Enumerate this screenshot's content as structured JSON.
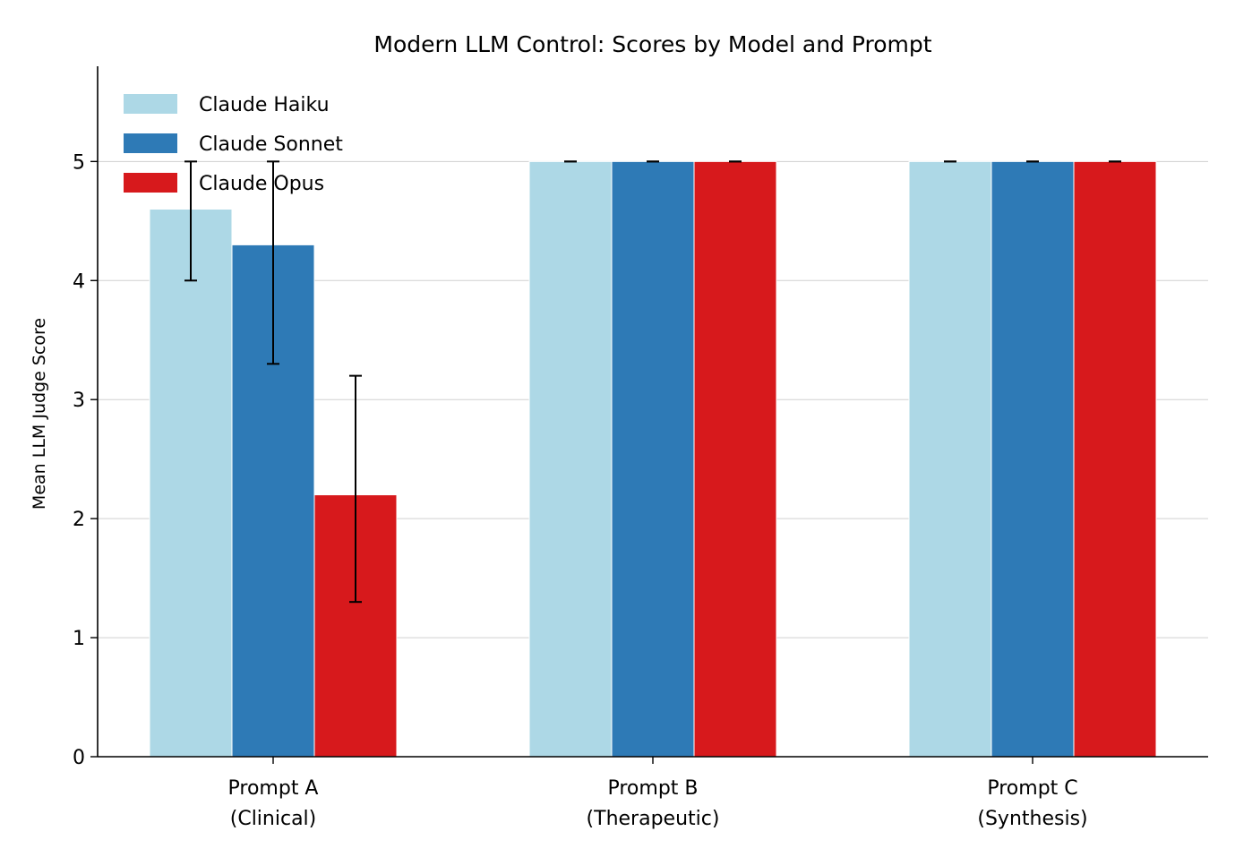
{
  "chart_data": {
    "type": "bar",
    "title": "Modern LLM Control: Scores by Model and Prompt",
    "xlabel": "",
    "ylabel": "Mean LLM Judge Score",
    "ylim": [
      0,
      5.8
    ],
    "yticks": [
      0,
      1,
      2,
      3,
      4,
      5
    ],
    "grid": "y",
    "legend_position": "top-left",
    "categories": [
      [
        "Prompt A",
        "(Clinical)"
      ],
      [
        "Prompt B",
        "(Therapeutic)"
      ],
      [
        "Prompt C",
        "(Synthesis)"
      ]
    ],
    "series": [
      {
        "name": "Claude Haiku",
        "color": "#add8e6",
        "values": [
          4.6,
          5.0,
          5.0
        ],
        "error_low": [
          4.0,
          5.0,
          5.0
        ],
        "error_high": [
          5.0,
          5.0,
          5.0
        ]
      },
      {
        "name": "Claude Sonnet",
        "color": "#2e7ab6",
        "values": [
          4.3,
          5.0,
          5.0
        ],
        "error_low": [
          3.3,
          5.0,
          5.0
        ],
        "error_high": [
          5.0,
          5.0,
          5.0
        ]
      },
      {
        "name": "Claude Opus",
        "color": "#d7191c",
        "values": [
          2.2,
          5.0,
          5.0
        ],
        "error_low": [
          1.3,
          5.0,
          5.0
        ],
        "error_high": [
          3.2,
          5.0,
          5.0
        ]
      }
    ]
  }
}
